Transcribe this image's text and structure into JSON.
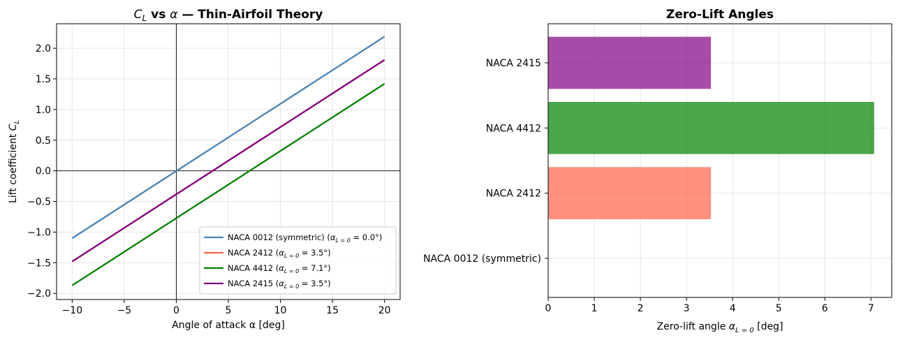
{
  "chart_data": [
    {
      "type": "line",
      "title_parts": [
        "C",
        "L",
        " vs ",
        "α",
        " — Thin-Airfoil Theory"
      ],
      "xlabel": "Angle of attack α [deg]",
      "ylabel_parts": [
        "Lift coefficient ",
        "C",
        "L"
      ],
      "xlim": [
        -11.5,
        21.5
      ],
      "ylim": [
        -2.1,
        2.4
      ],
      "xticks": [
        -10,
        -5,
        0,
        5,
        10,
        15,
        20
      ],
      "xtick_labels": [
        "−10",
        "−5",
        "0",
        "5",
        "10",
        "15",
        "20"
      ],
      "yticks": [
        -2.0,
        -1.5,
        -1.0,
        -0.5,
        0.0,
        0.5,
        1.0,
        1.5,
        2.0
      ],
      "ytick_labels": [
        "−2.0",
        "−1.5",
        "−1.0",
        "−0.5",
        "0.0",
        "0.5",
        "1.0",
        "1.5",
        "2.0"
      ],
      "grid": true,
      "legend_position": "lower-right",
      "series": [
        {
          "name": "NACA 0012 (symmetric)",
          "alpha_zero": "0.0",
          "color": "#4682b4",
          "x": [
            -10,
            20
          ],
          "y": [
            -1.1,
            2.19
          ]
        },
        {
          "name": "NACA 2412",
          "alpha_zero": "3.5",
          "color": "#ff6347",
          "x": [
            -10,
            20
          ],
          "y": [
            -1.48,
            1.81
          ]
        },
        {
          "name": "NACA 4412",
          "alpha_zero": "7.1",
          "color": "#008000",
          "x": [
            -10,
            20
          ],
          "y": [
            -1.87,
            1.42
          ]
        },
        {
          "name": "NACA 2415",
          "alpha_zero": "3.5",
          "color": "#800080",
          "x": [
            -10,
            20
          ],
          "y": [
            -1.48,
            1.81
          ]
        }
      ]
    },
    {
      "type": "bar",
      "orientation": "horizontal",
      "title": "Zero-Lift Angles",
      "xlabel_parts": [
        "Zero-lift angle ",
        "α",
        "L = 0",
        " [deg]"
      ],
      "xlim": [
        0,
        7.45
      ],
      "xticks": [
        0,
        1,
        2,
        3,
        4,
        5,
        6,
        7
      ],
      "xtick_labels": [
        "0",
        "1",
        "2",
        "3",
        "4",
        "5",
        "6",
        "7"
      ],
      "grid": true,
      "categories": [
        "NACA 0012 (symmetric)",
        "NACA 2412",
        "NACA 4412",
        "NACA 2415"
      ],
      "values": [
        0.0,
        3.53,
        7.07,
        3.53
      ],
      "colors": [
        "#4682b4",
        "#ff6347",
        "#008000",
        "#800080"
      ],
      "alpha": 0.7
    }
  ]
}
